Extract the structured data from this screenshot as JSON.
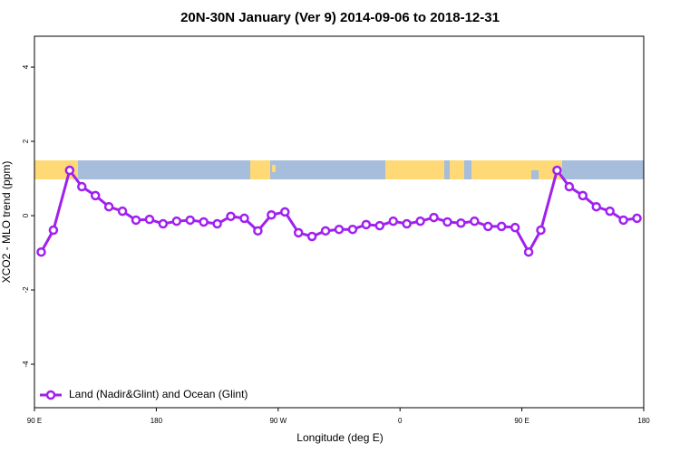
{
  "chart_data": {
    "type": "line",
    "title": "20N-30N January (Ver 9)   2014-09-06 to 2018-12-31",
    "x_label": "Longitude (deg E)",
    "y_label": "XCO2 - MLO trend (ppm)",
    "xlim": [
      90,
      540
    ],
    "ylim": [
      -5.17,
      4.83
    ],
    "xticks": [
      {
        "value": 90,
        "label": "90 E"
      },
      {
        "value": 180,
        "label": "180"
      },
      {
        "value": 270,
        "label": "90 W"
      },
      {
        "value": 360,
        "label": "0"
      },
      {
        "value": 450,
        "label": "90 E"
      },
      {
        "value": 540,
        "label": "180"
      }
    ],
    "yticks": [
      -4,
      -2,
      0,
      2,
      4
    ],
    "legend": "bottom-left",
    "series": [
      {
        "name": "Land (Nadir&Glint) and Ocean (Glint)",
        "color": "#a020f0",
        "x": [
          95,
          104,
          116,
          125,
          135,
          145,
          155,
          165,
          175,
          185,
          195,
          205,
          215,
          225,
          235,
          245,
          255,
          265,
          275,
          285,
          295,
          305,
          315,
          325,
          335,
          345,
          355,
          365,
          375,
          385,
          395,
          405,
          415,
          425,
          435,
          445,
          455,
          464,
          476,
          485,
          495,
          505,
          515,
          525,
          535
        ],
        "values": [
          -0.98,
          -0.39,
          1.22,
          0.78,
          0.54,
          0.24,
          0.12,
          -0.12,
          -0.1,
          -0.22,
          -0.15,
          -0.12,
          -0.17,
          -0.22,
          -0.02,
          -0.07,
          -0.41,
          0.02,
          0.1,
          -0.46,
          -0.56,
          -0.41,
          -0.37,
          -0.37,
          -0.24,
          -0.27,
          -0.15,
          -0.22,
          -0.15,
          -0.05,
          -0.17,
          -0.2,
          -0.15,
          -0.29,
          -0.29,
          -0.32,
          -0.98,
          -0.39,
          1.22,
          0.78,
          0.54,
          0.24,
          0.12,
          -0.12,
          -0.07
        ]
      }
    ]
  }
}
